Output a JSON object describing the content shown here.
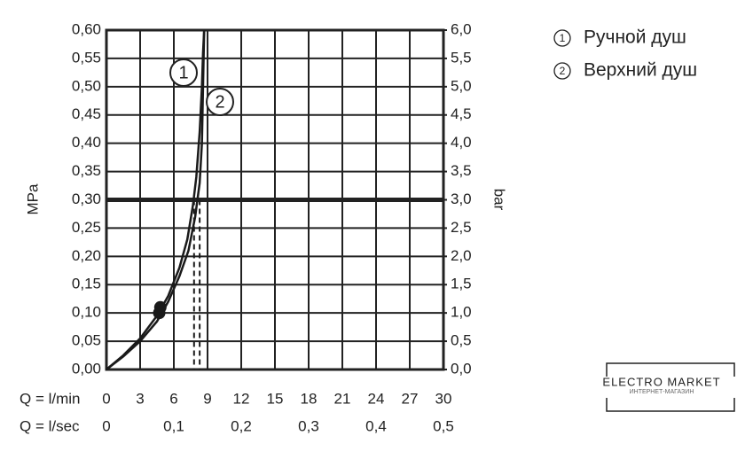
{
  "chart_data": {
    "type": "line",
    "ylabel": "MPa",
    "y2label": "bar",
    "xlabel": "Q = l/min",
    "x2label": "Q = l/sec",
    "xlim": [
      0,
      30
    ],
    "xticks": [
      0,
      3,
      6,
      9,
      12,
      15,
      18,
      21,
      24,
      27,
      30
    ],
    "x2lim": [
      0,
      0.5
    ],
    "x2ticks": [
      0,
      {
        "value": 0.1,
        "label": "0,1"
      },
      {
        "value": 0.2,
        "label": "0,2"
      },
      {
        "value": 0.3,
        "label": "0,3"
      },
      {
        "value": 0.4,
        "label": "0,4"
      },
      {
        "value": 0.5,
        "label": "0,5"
      }
    ],
    "ylim": [
      0,
      0.6
    ],
    "yticks": [
      {
        "value": 0,
        "label": "0,00"
      },
      {
        "value": 0.05,
        "label": "0,05"
      },
      {
        "value": 0.1,
        "label": "0,10"
      },
      {
        "value": 0.15,
        "label": "0,15"
      },
      {
        "value": 0.2,
        "label": "0,20"
      },
      {
        "value": 0.25,
        "label": "0,25"
      },
      {
        "value": 0.3,
        "label": "0,30"
      },
      {
        "value": 0.35,
        "label": "0,35"
      },
      {
        "value": 0.4,
        "label": "0,40"
      },
      {
        "value": 0.45,
        "label": "0,45"
      },
      {
        "value": 0.5,
        "label": "0,50"
      },
      {
        "value": 0.55,
        "label": "0,55"
      },
      {
        "value": 0.6,
        "label": "0,60"
      }
    ],
    "y2lim": [
      0,
      6
    ],
    "y2ticks": [
      {
        "value": 0,
        "label": "0,0"
      },
      {
        "value": 0.5,
        "label": "0,5"
      },
      {
        "value": 1,
        "label": "1,0"
      },
      {
        "value": 1.5,
        "label": "1,5"
      },
      {
        "value": 2,
        "label": "2,0"
      },
      {
        "value": 2.5,
        "label": "2,5"
      },
      {
        "value": 3,
        "label": "3,0"
      },
      {
        "value": 3.5,
        "label": "3,5"
      },
      {
        "value": 4,
        "label": "4,0"
      },
      {
        "value": 4.5,
        "label": "4,5"
      },
      {
        "value": 5,
        "label": "5,0"
      },
      {
        "value": 5.5,
        "label": "5,5"
      },
      {
        "value": 6,
        "label": "6,0"
      }
    ],
    "grid": true,
    "hline": 0.3,
    "series": [
      {
        "name": "Ручной душ",
        "marker_label": "1",
        "color": "#1a1a1a",
        "x": [
          0,
          1.5,
          3,
          4.5,
          5.5,
          6.5,
          7.2,
          7.7,
          8.0,
          8.3,
          8.5,
          8.6,
          8.7
        ],
        "values": [
          0,
          0.025,
          0.055,
          0.095,
          0.13,
          0.18,
          0.23,
          0.29,
          0.34,
          0.42,
          0.5,
          0.56,
          0.6
        ],
        "marker": {
          "x": 4.8,
          "y": 0.11
        },
        "reference_x": 7.8
      },
      {
        "name": "Верхний душ",
        "marker_label": "2",
        "color": "#1a1a1a",
        "x": [
          0,
          1.5,
          3,
          4.5,
          5.5,
          6.5,
          7.3,
          7.9,
          8.3,
          8.5,
          8.6,
          8.7
        ],
        "values": [
          0,
          0.023,
          0.05,
          0.085,
          0.12,
          0.165,
          0.21,
          0.27,
          0.33,
          0.4,
          0.5,
          0.6
        ],
        "marker": {
          "x": 4.7,
          "y": 0.1
        },
        "reference_x": 8.3
      }
    ]
  },
  "watermark": {
    "title": "ELECTRO MARKET",
    "subtitle": "ИНТЕРНЕТ-МАГАЗИН"
  }
}
